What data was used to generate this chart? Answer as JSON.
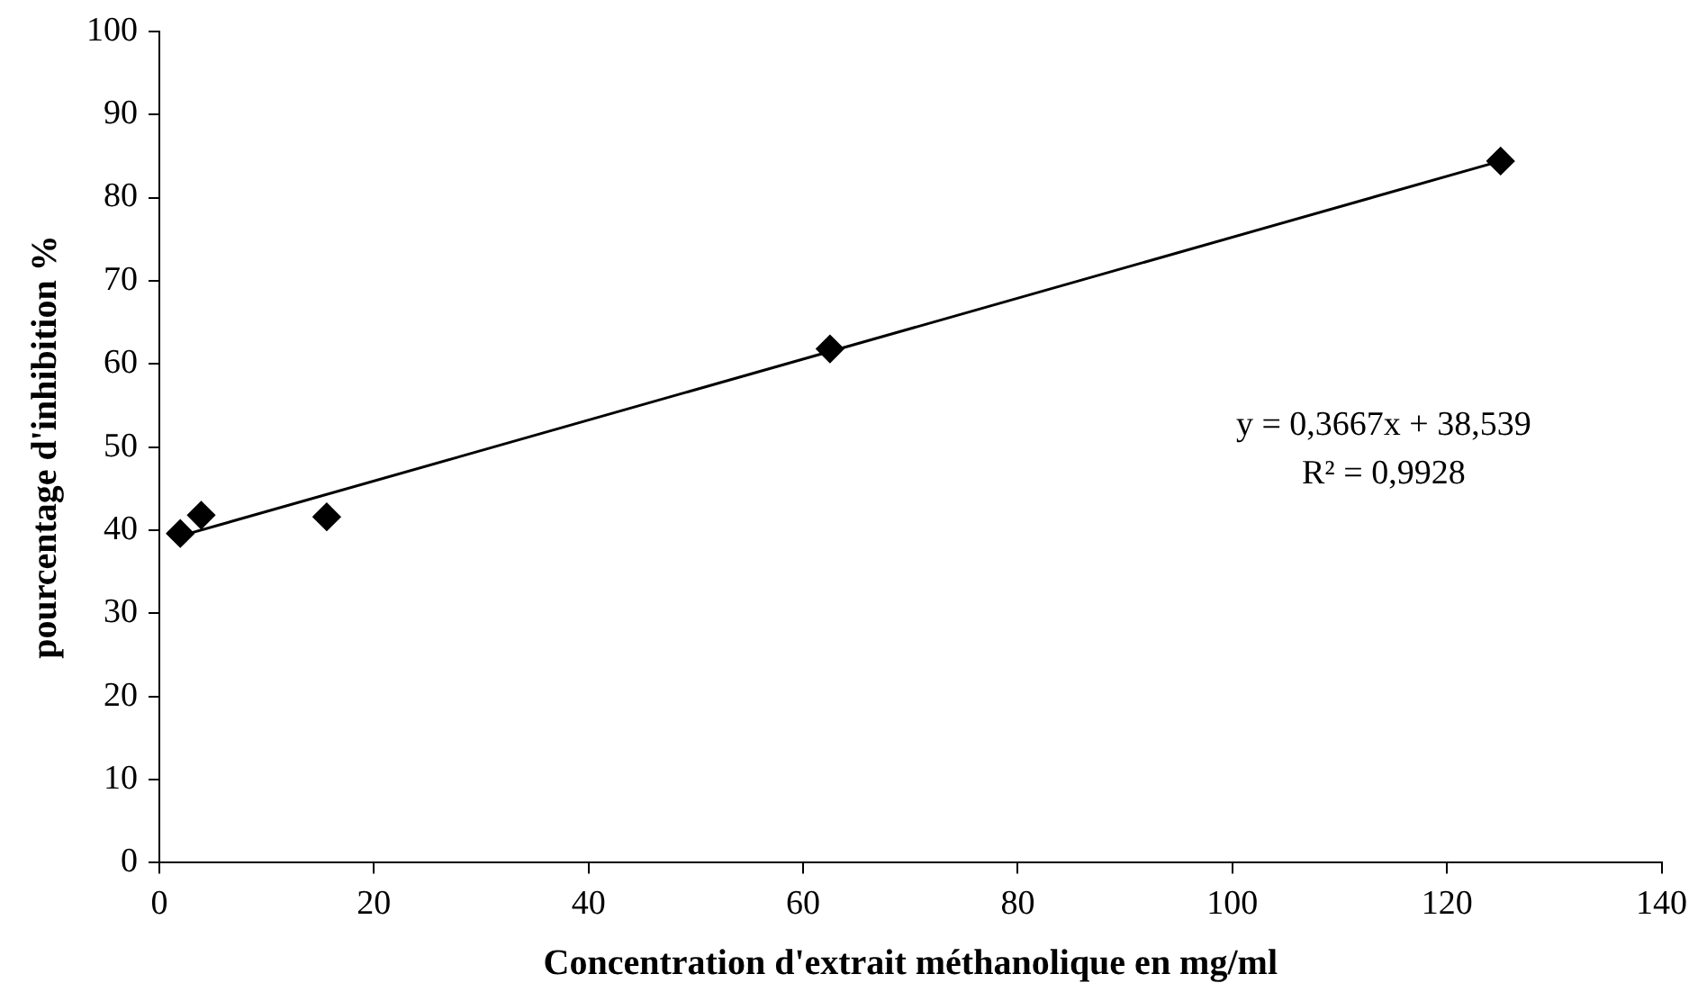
{
  "chart_data": {
    "type": "scatter",
    "xlabel": "Concentration d'extrait méthanolique en mg/ml",
    "ylabel": "pourcentage d'inhibition %",
    "xlim": [
      0,
      140
    ],
    "xticks": [
      0,
      20,
      40,
      60,
      80,
      100,
      120,
      140
    ],
    "ylim": [
      0,
      100
    ],
    "yticks": [
      0,
      10,
      20,
      30,
      40,
      50,
      60,
      70,
      80,
      90,
      100
    ],
    "grid": false,
    "legend": false,
    "series": [
      {
        "type": "scatter",
        "color": "#000000",
        "marker": "diamond",
        "x": [
          1.95,
          3.9,
          15.6,
          62.5,
          125
        ],
        "values": [
          39.6,
          41.8,
          41.6,
          61.8,
          84.4
        ]
      },
      {
        "type": "line",
        "color": "#000000",
        "marker": "none",
        "line_style": "solid",
        "x": [
          1.95,
          125
        ],
        "values": [
          39.3,
          84.4
        ]
      }
    ],
    "annotations": [
      "y = 0,3667x + 38,539",
      "R² = 0,9928"
    ]
  }
}
